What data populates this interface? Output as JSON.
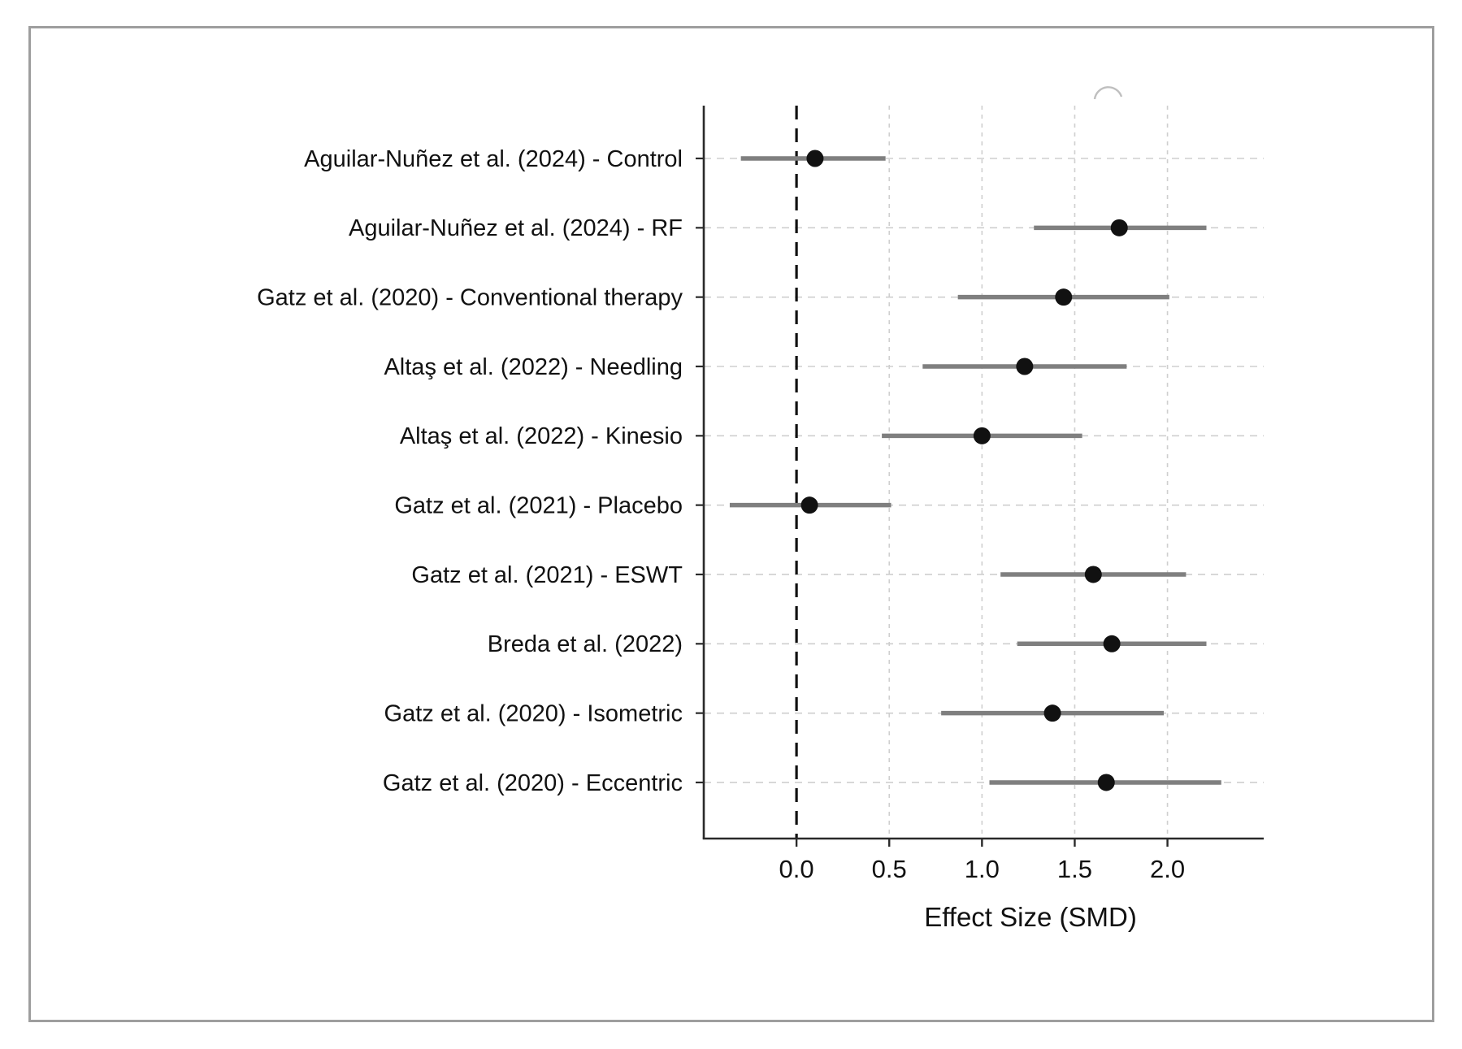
{
  "figure": {
    "frame_color": "#9e9e9e",
    "background_color": "#ffffff"
  },
  "chart_data": {
    "type": "scatter",
    "subtype": "forest-plot-with-error-bars",
    "title": "",
    "xlabel": "Effect Size (SMD)",
    "ylabel": "",
    "xlim": [
      -0.5,
      2.44
    ],
    "x_ticks": [
      0.0,
      0.5,
      1.0,
      1.5,
      2.0
    ],
    "x_tick_labels": [
      "0.0",
      "0.5",
      "1.0",
      "1.5",
      "2.0"
    ],
    "grid": true,
    "legend": false,
    "reference_line_x": 0.0,
    "studies": [
      {
        "label": "Aguilar-Nuñez et al. (2024) - Control",
        "estimate": 0.1,
        "ci_low": -0.3,
        "ci_high": 0.48
      },
      {
        "label": "Aguilar-Nuñez et al. (2024) - RF",
        "estimate": 1.74,
        "ci_low": 1.28,
        "ci_high": 2.21
      },
      {
        "label": "Gatz et al. (2020) - Conventional therapy",
        "estimate": 1.44,
        "ci_low": 0.87,
        "ci_high": 2.01
      },
      {
        "label": "Altaş et al. (2022) - Needling",
        "estimate": 1.23,
        "ci_low": 0.68,
        "ci_high": 1.78
      },
      {
        "label": "Altaş et al. (2022) - Kinesio",
        "estimate": 1.0,
        "ci_low": 0.46,
        "ci_high": 1.54
      },
      {
        "label": "Gatz et al. (2021) - Placebo",
        "estimate": 0.07,
        "ci_low": -0.36,
        "ci_high": 0.51
      },
      {
        "label": "Gatz et al. (2021) - ESWT",
        "estimate": 1.6,
        "ci_low": 1.1,
        "ci_high": 2.1
      },
      {
        "label": "Breda et al. (2022)",
        "estimate": 1.7,
        "ci_low": 1.19,
        "ci_high": 2.21
      },
      {
        "label": "Gatz et al. (2020) - Isometric",
        "estimate": 1.38,
        "ci_low": 0.78,
        "ci_high": 1.98
      },
      {
        "label": "Gatz et al. (2020) - Eccentric",
        "estimate": 1.67,
        "ci_low": 1.04,
        "ci_high": 2.29
      }
    ],
    "colors": {
      "point": "#111111",
      "ci_line": "#7f7f7f",
      "reference_line": "#111111",
      "grid_line": "#cfcfcf",
      "axis_spine": "#2a2a2a",
      "text": "#111111"
    }
  }
}
